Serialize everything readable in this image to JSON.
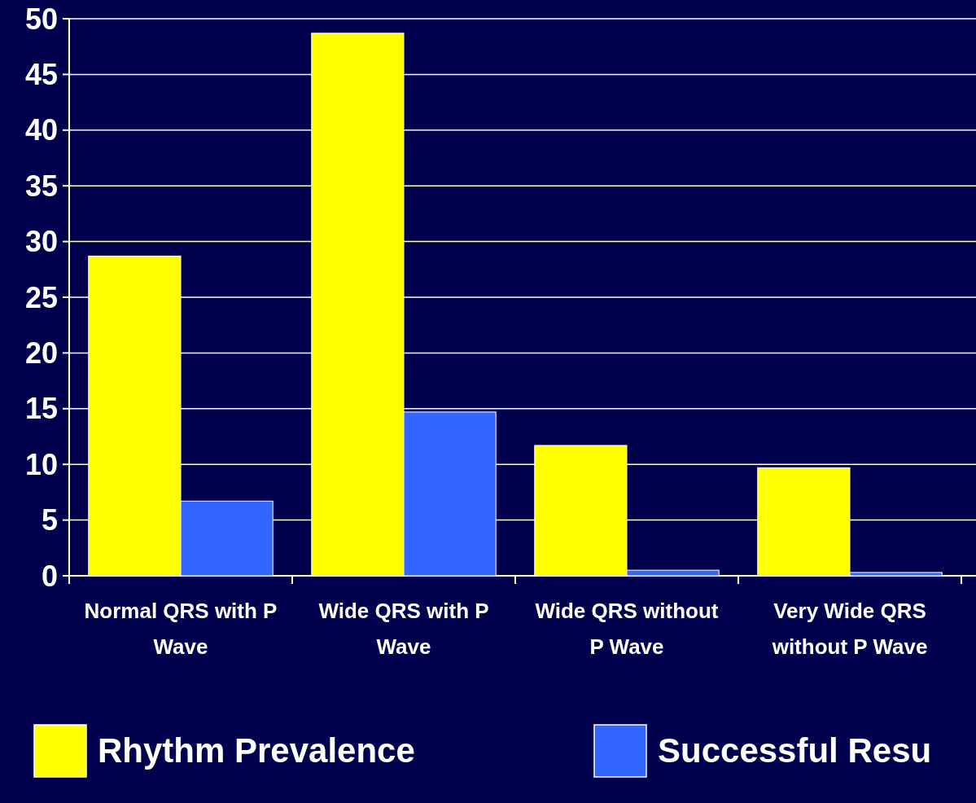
{
  "chart_data": {
    "type": "bar",
    "categories": [
      "Normal QRS with P Wave",
      "Wide QRS with P Wave",
      "Wide QRS without P Wave",
      "Very Wide QRS without P Wave"
    ],
    "series": [
      {
        "name": "Rhythm Prevalence",
        "color": "#ffff00",
        "values": [
          28.7,
          48.7,
          11.7,
          9.7
        ]
      },
      {
        "name": "Successful Resu",
        "color": "#3366ff",
        "values": [
          6.7,
          14.7,
          0.5,
          0.3
        ]
      }
    ],
    "ylim": [
      0,
      50
    ],
    "yticks": [
      0,
      5,
      10,
      15,
      20,
      25,
      30,
      35,
      40,
      45,
      50
    ],
    "grid": "y",
    "legend": "bottom"
  }
}
